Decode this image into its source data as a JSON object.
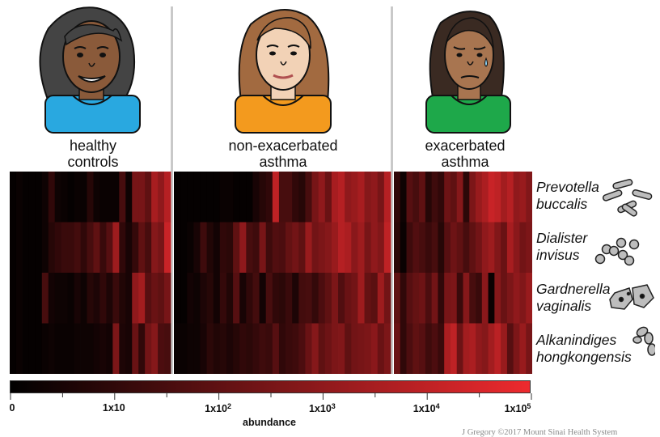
{
  "groups": [
    {
      "line1": "healthy",
      "line2": "controls",
      "shirt_color": "#29a8e0",
      "skin_color": "#8a5a3a",
      "hair_color": "#444444"
    },
    {
      "line1": "non-exacerbated",
      "line2": "asthma",
      "shirt_color": "#f39a1e",
      "skin_color": "#f2d2b6",
      "hair_color": "#a26a40"
    },
    {
      "line1": "exacerbated",
      "line2": "asthma",
      "shirt_color": "#1ea84a",
      "skin_color": "#a87550",
      "hair_color": "#3a2a22"
    }
  ],
  "species": [
    {
      "genus": "Prevotella",
      "epithet": "buccalis",
      "icon": "rod-bacteria-icon"
    },
    {
      "genus": "Dialister",
      "epithet": "invisus",
      "icon": "coccus-cluster-icon"
    },
    {
      "genus": "Gardnerella",
      "epithet": "vaginalis",
      "icon": "epithelial-cell-icon"
    },
    {
      "genus": "Alkanindiges",
      "epithet": "hongkongensis",
      "icon": "diplococcus-icon"
    }
  ],
  "colorbar": {
    "title": "abundance",
    "labels": [
      {
        "base": "0",
        "exp": ""
      },
      {
        "base": "1x10",
        "exp": ""
      },
      {
        "base": "1x10",
        "exp": "2"
      },
      {
        "base": "1x10",
        "exp": "3"
      },
      {
        "base": "1x10",
        "exp": "4"
      },
      {
        "base": "1x10",
        "exp": "5"
      }
    ],
    "colors": [
      "#000000",
      "#ee2a2e"
    ]
  },
  "chart_data": {
    "type": "heatmap",
    "rows": [
      "Prevotella buccalis",
      "Dialister invisus",
      "Gardnerella vaginalis",
      "Alkanindiges hongkongensis"
    ],
    "groups": [
      "healthy controls",
      "non-exacerbated asthma",
      "exacerbated asthma"
    ],
    "columns_per_group": [
      25,
      33,
      22
    ],
    "value_scale": "log10 abundance",
    "range": [
      0,
      5
    ],
    "values": [
      [
        0.1,
        0.2,
        0.1,
        0.1,
        0.1,
        0.3,
        1.0,
        0.3,
        0.2,
        0.1,
        0.2,
        0.2,
        0.8,
        0.3,
        0.2,
        0.2,
        0.2,
        1.5,
        0.3,
        2.5,
        2.5,
        2.0,
        3.5,
        3.0,
        3.8,
        0.1,
        0.1,
        0.1,
        0.1,
        0.1,
        0.1,
        0.1,
        0.2,
        0.2,
        0.1,
        0.1,
        0.1,
        0.5,
        0.8,
        1.0,
        4.0,
        1.5,
        1.5,
        1.0,
        0.8,
        1.5,
        2.5,
        3.0,
        2.2,
        3.5,
        3.8,
        3.0,
        3.2,
        3.5,
        2.8,
        3.0,
        2.5,
        3.8,
        1.0,
        0.3,
        1.8,
        1.5,
        2.0,
        0.8,
        1.3,
        1.0,
        2.3,
        2.0,
        2.8,
        0.9,
        2.6,
        3.2,
        3.6,
        4.2,
        4.0,
        3.4,
        3.8,
        3.0,
        3.2,
        2.7
      ],
      [
        0.1,
        0.2,
        0.1,
        0.1,
        0.1,
        0.3,
        0.8,
        1.0,
        1.2,
        1.2,
        1.4,
        1.0,
        1.5,
        2.0,
        1.2,
        1.8,
        3.3,
        1.0,
        0.5,
        1.1,
        2.0,
        1.5,
        2.8,
        2.5,
        4.2,
        0.1,
        0.1,
        0.2,
        0.5,
        1.3,
        0.7,
        0.4,
        1.0,
        0.9,
        2.0,
        3.0,
        1.5,
        1.3,
        2.5,
        1.3,
        1.7,
        1.6,
        2.1,
        2.4,
        2.0,
        3.2,
        2.4,
        2.6,
        2.8,
        3.2,
        3.8,
        3.6,
        2.9,
        3.3,
        2.5,
        3.0,
        2.7,
        4.0,
        0.9,
        0.2,
        1.3,
        1.7,
        1.5,
        1.2,
        1.5,
        0.8,
        1.8,
        2.3,
        2.0,
        1.5,
        2.0,
        2.4,
        3.0,
        3.3,
        2.7,
        2.2,
        3.5,
        2.9,
        2.4,
        2.6
      ],
      [
        0.1,
        0.2,
        0.1,
        0.1,
        0.1,
        1.5,
        0.4,
        0.3,
        0.3,
        0.2,
        0.5,
        0.3,
        0.8,
        0.6,
        1.0,
        0.6,
        1.2,
        0.7,
        0.5,
        3.0,
        3.4,
        1.8,
        2.2,
        2.0,
        2.5,
        0.1,
        0.1,
        0.4,
        0.3,
        0.6,
        0.8,
        0.4,
        1.1,
        0.7,
        1.8,
        0.5,
        1.0,
        1.4,
        0.4,
        1.5,
        1.0,
        0.9,
        1.2,
        0.6,
        1.4,
        1.5,
        1.1,
        1.6,
        2.0,
        2.6,
        1.7,
        2.2,
        2.4,
        3.3,
        2.1,
        1.9,
        3.3,
        2.4,
        2.0,
        1.0,
        1.8,
        2.1,
        2.3,
        1.6,
        2.4,
        1.0,
        2.5,
        2.6,
        1.2,
        2.8,
        1.5,
        1.2,
        2.9,
        0.2,
        2.8,
        2.2,
        2.6,
        3.0,
        2.7,
        3.2
      ],
      [
        0.1,
        0.2,
        0.1,
        0.1,
        0.1,
        0.2,
        0.3,
        0.2,
        0.2,
        0.2,
        0.3,
        0.3,
        0.3,
        0.4,
        0.5,
        0.4,
        2.6,
        0.6,
        0.5,
        2.2,
        1.0,
        2.4,
        2.8,
        1.6,
        1.5,
        0.2,
        0.2,
        0.3,
        0.3,
        0.5,
        0.9,
        0.7,
        0.8,
        0.6,
        0.8,
        1.0,
        0.9,
        1.1,
        1.3,
        1.2,
        1.8,
        1.0,
        1.2,
        1.3,
        1.6,
        2.2,
        2.8,
        2.0,
        2.3,
        2.6,
        2.7,
        2.0,
        2.4,
        2.5,
        2.6,
        2.9,
        2.2,
        2.6,
        2.2,
        1.0,
        1.6,
        2.0,
        1.8,
        1.3,
        1.6,
        1.2,
        3.6,
        4.0,
        2.3,
        3.4,
        3.6,
        3.0,
        2.8,
        3.4,
        3.9,
        3.2,
        1.8,
        2.6,
        3.2,
        2.5
      ]
    ]
  },
  "credit": "J Gregory ©2017 Mount Sinai Health System"
}
